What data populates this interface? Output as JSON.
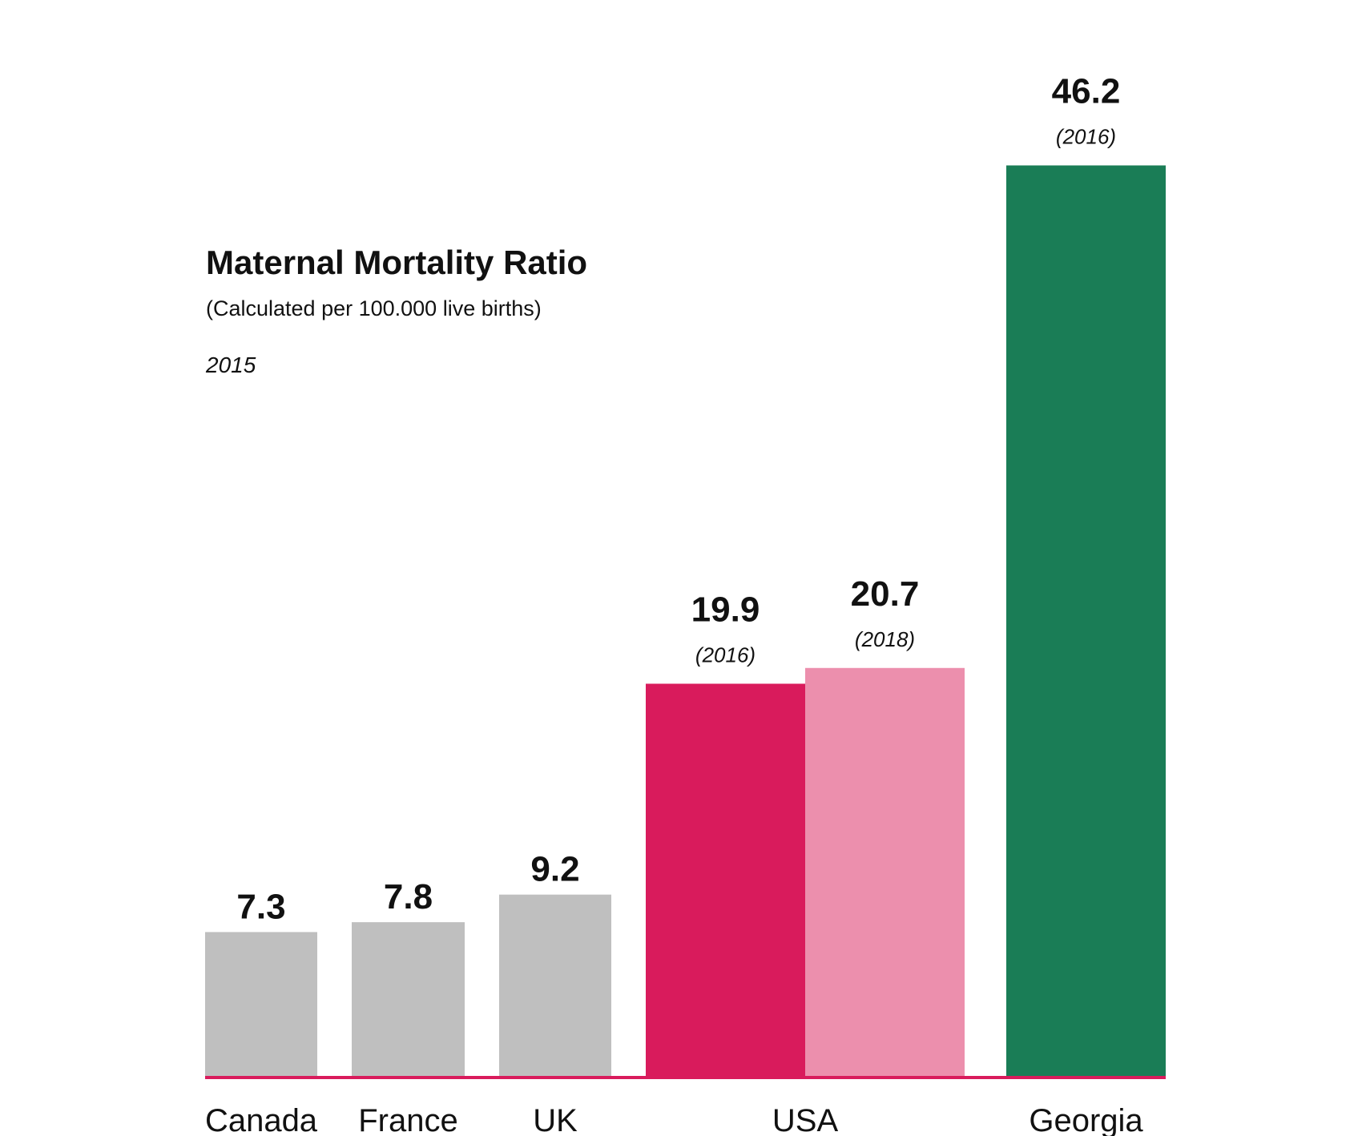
{
  "chart_data": {
    "type": "bar",
    "title": "Maternal Mortality Ratio",
    "subtitle": "(Calculated per 100.000 live births)",
    "year_note": "2015",
    "xlabel": "",
    "ylabel": "",
    "ylim": [
      0,
      47
    ],
    "grid": false,
    "legend": "none",
    "categories": [
      "Canada",
      "France",
      "UK",
      "USA",
      "Georgia"
    ],
    "bars": [
      {
        "category": "Canada",
        "value": 7.3,
        "value_label": "7.3",
        "year_label": "",
        "color": "#bfbfbf"
      },
      {
        "category": "France",
        "value": 7.8,
        "value_label": "7.8",
        "year_label": "",
        "color": "#bfbfbf"
      },
      {
        "category": "UK",
        "value": 9.2,
        "value_label": "9.2",
        "year_label": "",
        "color": "#bfbfbf"
      },
      {
        "category": "USA",
        "value": 19.9,
        "value_label": "19.9",
        "year_label": "(2016)",
        "color": "#d91b5c"
      },
      {
        "category": "USA",
        "value": 20.7,
        "value_label": "20.7",
        "year_label": "(2018)",
        "color": "#ec8fad"
      },
      {
        "category": "Georgia",
        "value": 46.2,
        "value_label": "46.2",
        "year_label": "(2016)",
        "color": "#1a7d56"
      }
    ],
    "axis_color": "#d91b5c"
  }
}
